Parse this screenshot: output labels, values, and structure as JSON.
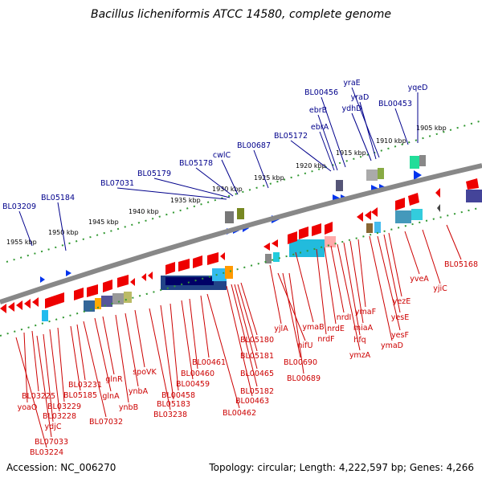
{
  "title": "Bacillus licheniformis ATCC 14580, complete genome",
  "accession": "Accession: NC_006270",
  "summary": "Topology: circular; Length: 4,222,597 bp; Genes: 4,266",
  "colors": {
    "forward_label": "#00008b",
    "reverse_label": "#cc0000",
    "forward_arrow": "#0033ee",
    "reverse_arrow": "#ee0000",
    "backbone": "#888888",
    "ruler": "#339933"
  },
  "ruler_ticks": [
    "1905 kbp",
    "1910 kbp",
    "1915 kbp",
    "1920 kbp",
    "1925 kbp",
    "1930 kbp",
    "1935 kbp",
    "1940 kbp",
    "1945 kbp",
    "1950 kbp",
    "1955 kbp"
  ],
  "forward_labels": [
    "yqeD",
    "yraE",
    "yraD",
    "ydhD",
    "BL00453",
    "BL00456",
    "ebrB",
    "ebrA",
    "BL05172",
    "BL00687",
    "cwlC",
    "BL05178",
    "BL05179",
    "BL07031",
    "BL05184",
    "BL03209"
  ],
  "reverse_labels": [
    "BL05168",
    "yjiC",
    "yveA",
    "yezE",
    "yesE",
    "yesF",
    "ymaD",
    "ymaF",
    "miaA",
    "hfq",
    "ymzA",
    "nrdI",
    "nrdE",
    "nrdF",
    "ymaB",
    "yjlA",
    "nifU",
    "BL00690",
    "BL00689",
    "BL05180",
    "BL05181",
    "BL00465",
    "BL05182",
    "BL00463",
    "BL00462",
    "BL00461",
    "BL00460",
    "BL00459",
    "BL00458",
    "BL05183",
    "BL03238",
    "spoVK",
    "ynbA",
    "ynbB",
    "glnR",
    "glnA",
    "BL07032",
    "BL03231",
    "BL05185",
    "BL03229",
    "BL03228",
    "BL03225",
    "yoaO",
    "ydjC",
    "BL07033",
    "BL03224"
  ]
}
